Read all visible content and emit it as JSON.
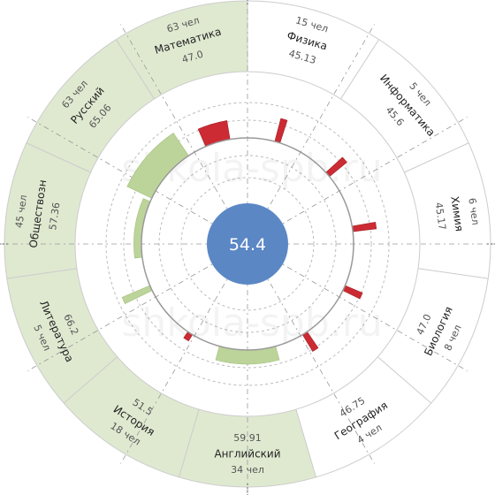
{
  "chart_data": {
    "type": "radial-bar",
    "center_value": "54.4",
    "center_number": 54.4,
    "watermark": "shkola-spb.ru",
    "sectors": [
      {
        "name": "Математика",
        "score": "47.0",
        "score_number": 47.0,
        "count": "63 чел",
        "highlighted": true
      },
      {
        "name": "Физика",
        "score": "45.13",
        "score_number": 45.13,
        "count": "15 чел",
        "highlighted": false
      },
      {
        "name": "Информатика",
        "score": "45.6",
        "score_number": 45.6,
        "count": "5 чел",
        "highlighted": false
      },
      {
        "name": "Химия",
        "score": "45.17",
        "score_number": 45.17,
        "count": "6 чел",
        "highlighted": false
      },
      {
        "name": "Биология",
        "score": "47.0",
        "score_number": 47.0,
        "count": "8 чел",
        "highlighted": false
      },
      {
        "name": "География",
        "score": "46.75",
        "score_number": 46.75,
        "count": "4 чел",
        "highlighted": false
      },
      {
        "name": "Английский",
        "score": "59.91",
        "score_number": 59.91,
        "count": "34 чел",
        "highlighted": true
      },
      {
        "name": "История",
        "score": "51.5",
        "score_number": 51.5,
        "count": "18 чел",
        "highlighted": true
      },
      {
        "name": "Литература",
        "score": "66.2",
        "score_number": 66.2,
        "count": "5 чел",
        "highlighted": true
      },
      {
        "name": "Обществозн",
        "score": "57.36",
        "score_number": 57.36,
        "count": "45 чел",
        "highlighted": true
      },
      {
        "name": "Русский",
        "score": "65.06",
        "score_number": 65.06,
        "count": "63 чел",
        "highlighted": true
      }
    ],
    "colors": {
      "highlight_fill": "#dfe9d0",
      "positive_bar": "#bcd49a",
      "negative_bar": "#cc2b33",
      "center": "#5b87c5",
      "grid": "#bbbbbb",
      "divider": "#cccccc",
      "baseline": "#999999"
    }
  }
}
